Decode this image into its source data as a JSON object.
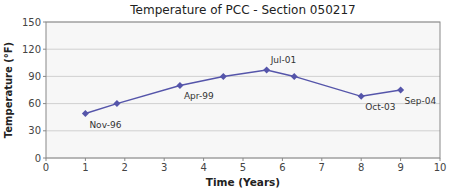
{
  "chart_data": {
    "type": "line",
    "title": "Temperature of PCC - Section 050217",
    "x_label": "Time (Years)",
    "y_label": "Temperature (°F)",
    "x": [
      1.0,
      1.8,
      3.4,
      4.5,
      5.6,
      6.3,
      8.0,
      9.0
    ],
    "values": [
      49,
      60,
      80,
      90,
      97,
      90,
      68,
      75
    ],
    "color": "#5555aa",
    "marker": "diamond",
    "xlim": [
      0,
      10
    ],
    "ylim": [
      0,
      150
    ],
    "xticks": [
      0,
      1,
      2,
      3,
      4,
      5,
      6,
      7,
      8,
      9,
      10
    ],
    "yticks": [
      0,
      30,
      60,
      90,
      120,
      150
    ],
    "grid": true,
    "annotations": [
      {
        "text": "Nov-96",
        "x": 1.0,
        "y": 49
      },
      {
        "text": "Apr-99",
        "x": 3.4,
        "y": 80
      },
      {
        "text": "Jul-01",
        "x": 5.6,
        "y": 97
      },
      {
        "text": "Oct-03",
        "x": 8.0,
        "y": 68
      },
      {
        "text": "Sep-04",
        "x": 9.0,
        "y": 75
      }
    ]
  }
}
